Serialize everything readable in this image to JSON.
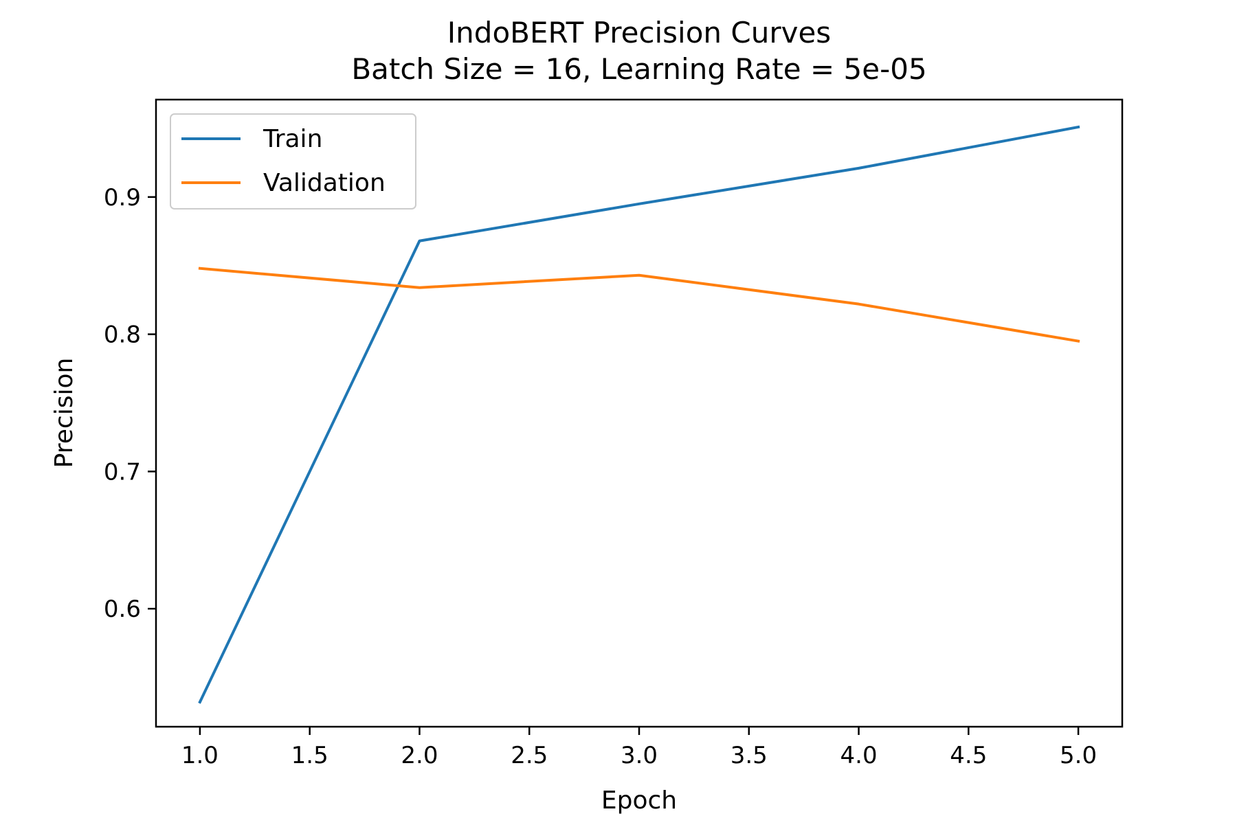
{
  "chart_data": {
    "type": "line",
    "title": "IndoBERT Precision Curves",
    "subtitle": "Batch Size = 16, Learning Rate = 5e-05",
    "xlabel": "Epoch",
    "ylabel": "Precision",
    "x": [
      1.0,
      2.0,
      3.0,
      4.0,
      5.0
    ],
    "xlim": [
      0.8,
      5.2
    ],
    "ylim": [
      0.514,
      0.971
    ],
    "xticks": [
      1.0,
      1.5,
      2.0,
      2.5,
      3.0,
      3.5,
      4.0,
      4.5,
      5.0
    ],
    "xtick_labels": [
      "1.0",
      "1.5",
      "2.0",
      "2.5",
      "3.0",
      "3.5",
      "4.0",
      "4.5",
      "5.0"
    ],
    "yticks": [
      0.6,
      0.7,
      0.8,
      0.9
    ],
    "ytick_labels": [
      "0.6",
      "0.7",
      "0.8",
      "0.9"
    ],
    "grid": false,
    "legend_position": "upper-left",
    "series": [
      {
        "name": "Train",
        "color": "#1f77b4",
        "values": [
          0.532,
          0.868,
          0.895,
          0.921,
          0.951
        ]
      },
      {
        "name": "Validation",
        "color": "#ff7f0e",
        "values": [
          0.848,
          0.834,
          0.843,
          0.822,
          0.795
        ]
      }
    ]
  }
}
